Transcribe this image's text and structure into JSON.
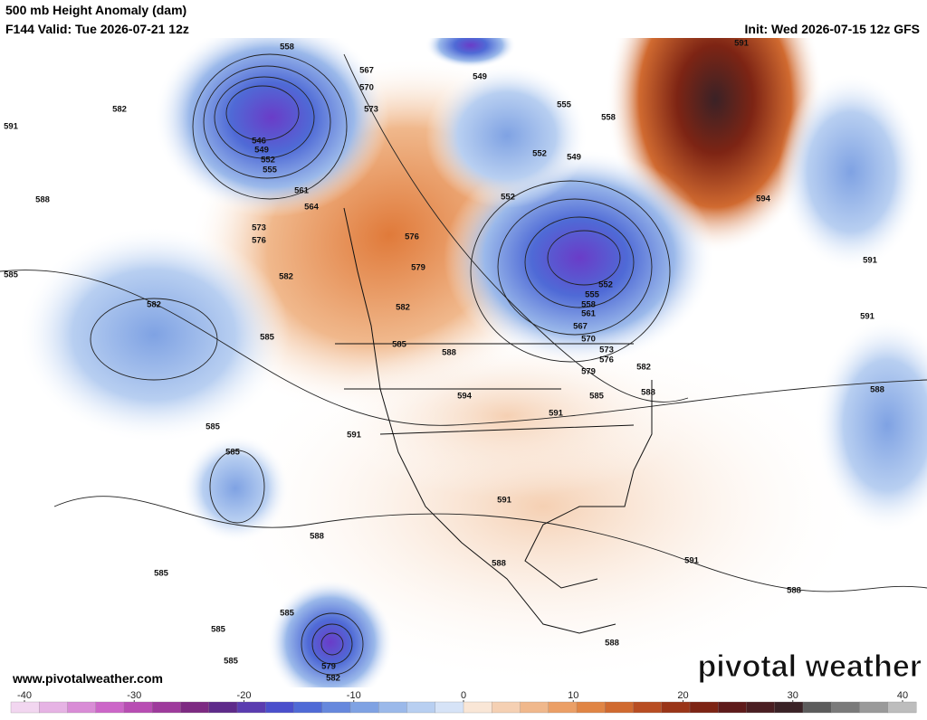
{
  "header": {
    "title": "500 mb Height Anomaly (dam)",
    "valid": "F144 Valid: Tue 2026-07-21 12z",
    "init": "Init: Wed 2026-07-15 12z GFS"
  },
  "contour_labels": [
    558,
    567,
    570,
    573,
    546,
    549,
    552,
    555,
    561,
    564,
    582,
    591,
    588,
    573,
    576,
    576,
    579,
    585,
    582,
    582,
    582,
    585,
    585,
    588,
    594,
    591,
    591,
    585,
    585,
    588,
    585,
    591,
    588,
    591,
    588,
    588,
    588,
    591,
    591,
    594,
    591,
    549,
    555,
    558,
    552,
    549,
    552,
    552,
    555,
    558,
    561,
    567,
    570,
    573,
    576,
    579,
    582,
    585,
    588,
    585,
    585,
    585,
    579,
    582
  ],
  "footer": {
    "url": "www.pivotalweather.com",
    "logo": "pivotal weather"
  },
  "colorbar": {
    "ticks": [
      -40,
      -30,
      -20,
      -10,
      0,
      10,
      20,
      30,
      40
    ],
    "colors": [
      "#f2d6f0",
      "#e6b3e4",
      "#d98cd6",
      "#cc66c8",
      "#b84db3",
      "#9e3a9c",
      "#7d2a82",
      "#5e2a8a",
      "#5a3cb0",
      "#4a4fcc",
      "#4f6ad6",
      "#6688dd",
      "#7fa2e3",
      "#9bb9ea",
      "#b8cff1",
      "#d6e3f7",
      "#f9e6d6",
      "#f5d0b3",
      "#f0b88c",
      "#eb9f66",
      "#e08545",
      "#d06a30",
      "#b84d22",
      "#9a3518",
      "#7d2414",
      "#5e1a1a",
      "#4a1e22",
      "#3a2226",
      "#5c5c5c",
      "#7a7a7a",
      "#9a9a9a",
      "#bdbdbd"
    ]
  }
}
